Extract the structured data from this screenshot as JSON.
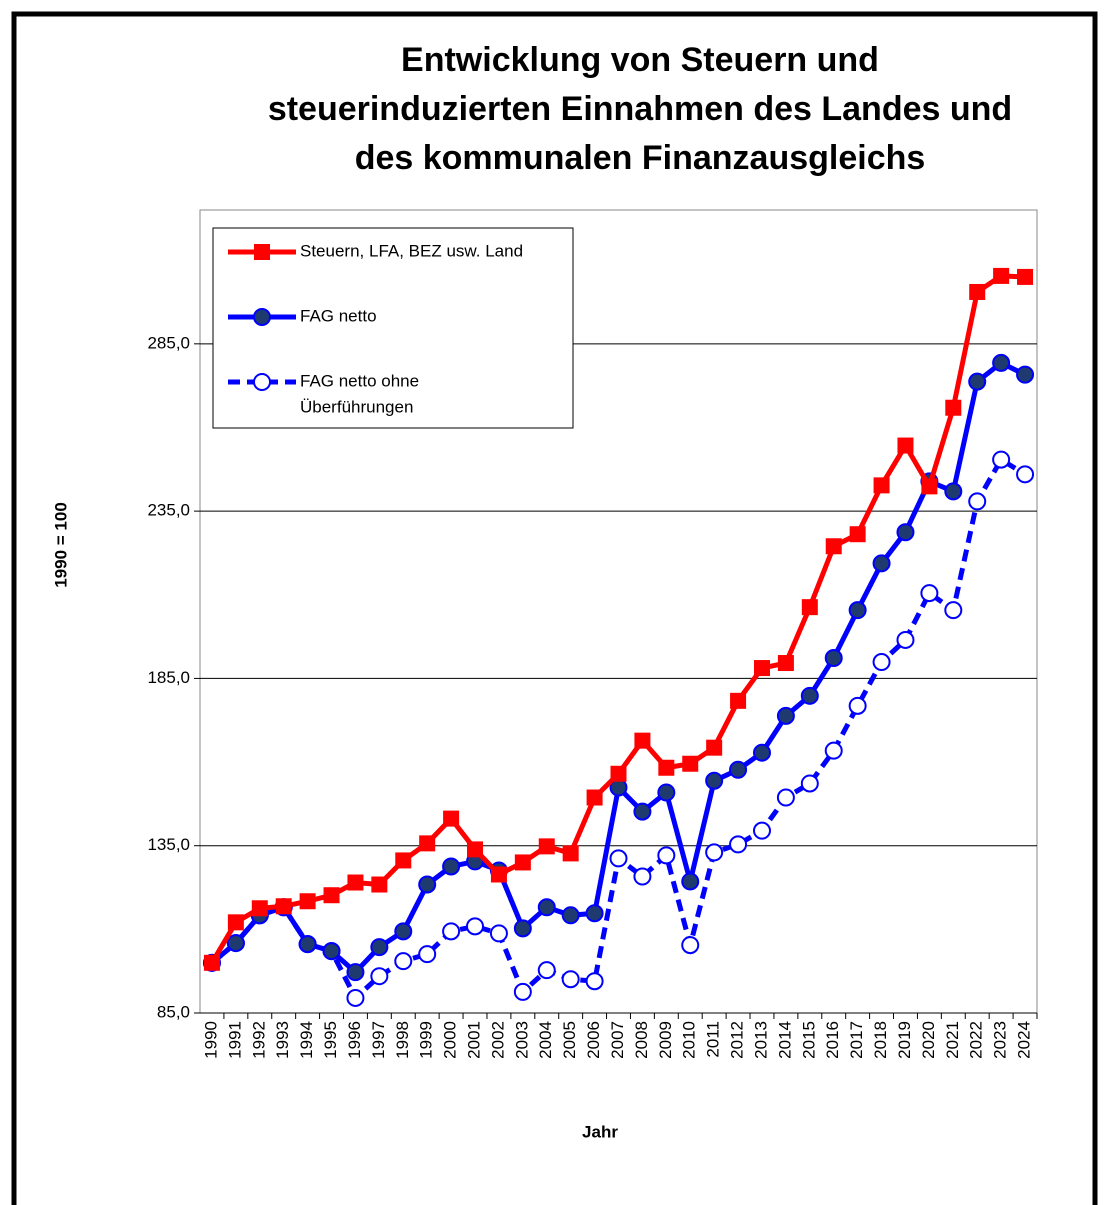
{
  "chart_data": {
    "type": "line",
    "title": [
      "Entwicklung von Steuern und",
      "steuerinduzierten Einnahmen des Landes und",
      "des kommunalen Finanzausgleichs"
    ],
    "y_label": "1990 = 100",
    "x_label": "Jahr",
    "categories": [
      "1990",
      "1991",
      "1992",
      "1993",
      "1994",
      "1995",
      "1996",
      "1997",
      "1998",
      "1999",
      "2000",
      "2001",
      "2002",
      "2003",
      "2004",
      "2005",
      "2006",
      "2007",
      "2008",
      "2009",
      "2010",
      "2011",
      "2012",
      "2013",
      "2014",
      "2015",
      "2016",
      "2017",
      "2018",
      "2019",
      "2020",
      "2021",
      "2022",
      "2023",
      "2024"
    ],
    "series": [
      {
        "name": "Steuern, LFA, BEZ usw. Land",
        "color": "#ff0000",
        "marker": "square",
        "line_style": "solid",
        "values": [
          100,
          112.1,
          116.3,
          116.9,
          118.4,
          120.2,
          124.0,
          123.4,
          130.6,
          135.7,
          143.1,
          133.9,
          126.4,
          130.0,
          134.8,
          132.7,
          149.4,
          156.5,
          166.4,
          158.3,
          159.5,
          164.3,
          178.3,
          188.1,
          189.6,
          206.3,
          224.5,
          228.1,
          242.7,
          254.6,
          242.4,
          265.9,
          300.5,
          305.3,
          305.0
        ]
      },
      {
        "name": "FAG netto",
        "color": "#0000ff",
        "marker": "filled-circle",
        "line_style": "solid",
        "values": [
          100,
          105.9,
          114.2,
          116.6,
          105.6,
          103.5,
          97.2,
          104.7,
          109.4,
          123.4,
          128.8,
          130.3,
          127.6,
          110.3,
          116.6,
          114.2,
          114.8,
          152.4,
          145.2,
          150.9,
          124.3,
          154.4,
          157.7,
          162.8,
          173.8,
          179.8,
          191.1,
          205.4,
          219.4,
          228.7,
          243.9,
          240.9,
          273.7,
          279.3,
          275.8
        ]
      },
      {
        "name": [
          "FAG netto ohne",
          "Überführungen"
        ],
        "color": "#0000ff",
        "marker": "open-circle",
        "line_style": "dashed",
        "values": [
          100,
          105.9,
          114.2,
          116.6,
          105.6,
          103.5,
          89.5,
          96.0,
          100.5,
          102.6,
          109.4,
          110.9,
          108.8,
          91.3,
          97.8,
          95.1,
          94.5,
          131.2,
          125.8,
          132.1,
          105.3,
          133.0,
          135.4,
          139.5,
          149.4,
          153.6,
          163.4,
          176.8,
          189.9,
          196.5,
          210.5,
          205.4,
          237.9,
          250.4,
          246.0
        ]
      }
    ],
    "ylim": [
      85,
      325
    ],
    "yticks": [
      {
        "value": 85,
        "label": "85,0"
      },
      {
        "value": 135,
        "label": "135,0"
      },
      {
        "value": 185,
        "label": "185,0"
      },
      {
        "value": 235,
        "label": "235,0"
      },
      {
        "value": 285,
        "label": "285,0"
      }
    ],
    "grid": true,
    "legend": "top-left"
  }
}
